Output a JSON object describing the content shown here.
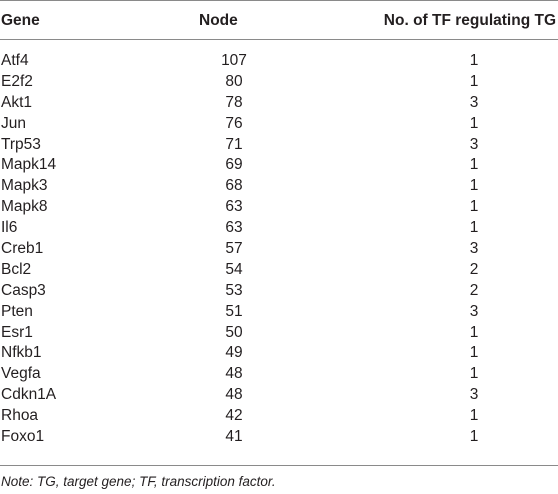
{
  "table": {
    "headers": {
      "gene": "Gene",
      "node": "Node",
      "tf": "No. of TF regulating TG"
    },
    "rows": [
      {
        "gene": "Atf4",
        "node": "107",
        "tf": "1"
      },
      {
        "gene": "E2f2",
        "node": "80",
        "tf": "1"
      },
      {
        "gene": "Akt1",
        "node": "78",
        "tf": "3"
      },
      {
        "gene": "Jun",
        "node": "76",
        "tf": "1"
      },
      {
        "gene": "Trp53",
        "node": "71",
        "tf": "3"
      },
      {
        "gene": "Mapk14",
        "node": "69",
        "tf": "1"
      },
      {
        "gene": "Mapk3",
        "node": "68",
        "tf": "1"
      },
      {
        "gene": "Mapk8",
        "node": "63",
        "tf": "1"
      },
      {
        "gene": "Il6",
        "node": "63",
        "tf": "1"
      },
      {
        "gene": "Creb1",
        "node": "57",
        "tf": "3"
      },
      {
        "gene": "Bcl2",
        "node": "54",
        "tf": "2"
      },
      {
        "gene": "Casp3",
        "node": "53",
        "tf": "2"
      },
      {
        "gene": "Pten",
        "node": "51",
        "tf": "3"
      },
      {
        "gene": "Esr1",
        "node": "50",
        "tf": "1"
      },
      {
        "gene": "Nfkb1",
        "node": "49",
        "tf": "1"
      },
      {
        "gene": "Vegfa",
        "node": "48",
        "tf": "1"
      },
      {
        "gene": "Cdkn1A",
        "node": "48",
        "tf": "3"
      },
      {
        "gene": "Rhoa",
        "node": "42",
        "tf": "1"
      },
      {
        "gene": "Foxo1",
        "node": "41",
        "tf": "1"
      }
    ],
    "note": "Note: TG, target gene; TF, transcription factor."
  }
}
